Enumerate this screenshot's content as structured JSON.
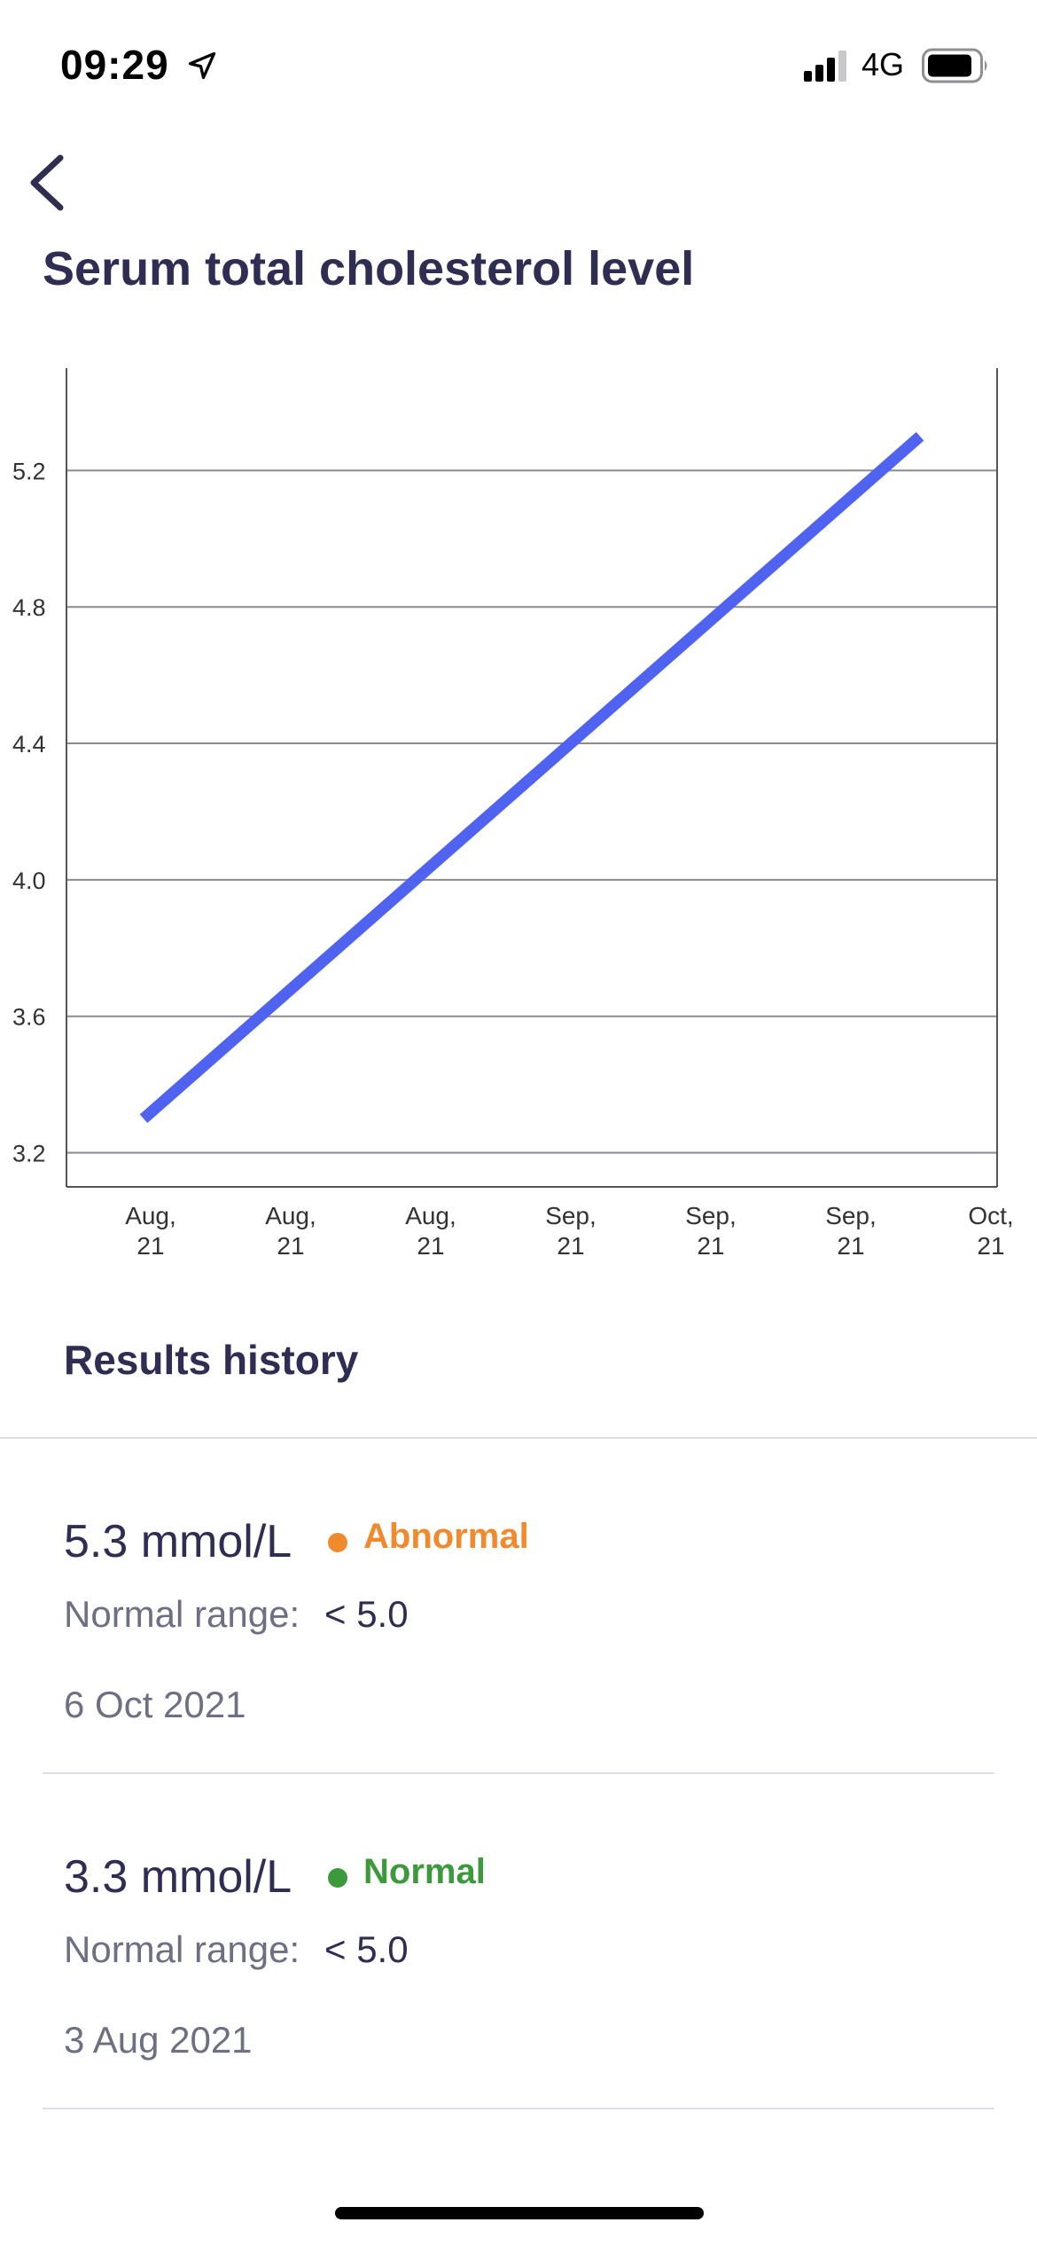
{
  "status_bar": {
    "time": "09:29",
    "network": "4G",
    "icons": [
      "location-arrow-icon",
      "signal-bars-icon",
      "battery-icon"
    ]
  },
  "nav": {
    "back_icon": "chevron-left-icon"
  },
  "page": {
    "title": "Serum total cholesterol level"
  },
  "chart_data": {
    "type": "line",
    "title": "",
    "xlabel": "",
    "ylabel": "",
    "x_tick_labels": [
      [
        "Aug,",
        "21"
      ],
      [
        "Aug,",
        "21"
      ],
      [
        "Aug,",
        "21"
      ],
      [
        "Sep,",
        "21"
      ],
      [
        "Sep,",
        "21"
      ],
      [
        "Sep,",
        "21"
      ],
      [
        "Oct,",
        "21"
      ]
    ],
    "y_ticks": [
      "3.2",
      "3.6",
      "4.0",
      "4.4",
      "4.8",
      "5.2"
    ],
    "ylim": [
      3.1,
      5.5
    ],
    "xlim": [
      "2021-08-03",
      "2021-10-06"
    ],
    "grid": "horizontal",
    "legend": "none",
    "series": [
      {
        "color": "#4f63f0",
        "points": [
          {
            "x": "2021-08-03",
            "y": 3.3
          },
          {
            "x": "2021-10-06",
            "y": 5.3
          }
        ]
      }
    ]
  },
  "results": {
    "title": "Results history",
    "items": [
      {
        "value": "5.3 mmol/L",
        "status": "Abnormal",
        "status_color": "#f08a2c",
        "range_label": "Normal range:",
        "range_value": "< 5.0",
        "date": "6 Oct 2021"
      },
      {
        "value": "3.3 mmol/L",
        "status": "Normal",
        "status_color": "#3c9a3c",
        "range_label": "Normal range:",
        "range_value": "< 5.0",
        "date": "3 Aug 2021"
      }
    ]
  },
  "colors": {
    "text_primary": "#2f2d52",
    "text_secondary": "#6d6f82",
    "line": "#4f63f0",
    "grid": "#8a8a90"
  }
}
